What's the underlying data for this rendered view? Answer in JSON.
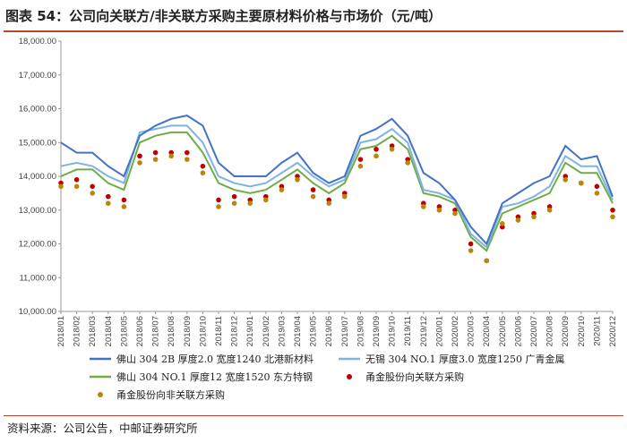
{
  "title": "图表 54：公司向关联方/非关联方采购主要原材料价格与市场价（元/吨）",
  "source": "资料来源：公司公告，中邮证券研究所",
  "chart_data": {
    "type": "line",
    "ylim": [
      10000,
      18000
    ],
    "y_ticks": [
      "10,000.00",
      "11,000.00",
      "12,000.00",
      "13,000.00",
      "14,000.00",
      "15,000.00",
      "16,000.00",
      "17,000.00",
      "18,000.00"
    ],
    "categories": [
      "2018/01",
      "2018/02",
      "2018/03",
      "2018/04",
      "2018/05",
      "2018/06",
      "2018/07",
      "2018/08",
      "2018/09",
      "2018/10",
      "2018/11",
      "2018/12",
      "2019/01",
      "2019/02",
      "2019/03",
      "2019/04",
      "2019/05",
      "2019/06",
      "2019/07",
      "2019/08",
      "2019/09",
      "2019/10",
      "2019/11",
      "2019/12",
      "2020/01",
      "2020/02",
      "2020/03",
      "2020/04",
      "2020/05",
      "2020/06",
      "2020/07",
      "2020/08",
      "2020/09",
      "2020/10",
      "2020/11",
      "2020/12"
    ],
    "grid": false,
    "legend_position": "bottom",
    "series": [
      {
        "name": "佛山 304 2B 厚度2.0 宽度1240 北港新材料",
        "kind": "line",
        "color": "#4472c4",
        "values": [
          15000,
          14700,
          14700,
          14300,
          14000,
          15200,
          15500,
          15700,
          15800,
          15500,
          14400,
          14000,
          14000,
          14000,
          14400,
          14700,
          14100,
          13800,
          14000,
          15200,
          15400,
          15700,
          15200,
          14100,
          13800,
          13300,
          12500,
          12000,
          13200,
          13500,
          13800,
          14000,
          14900,
          14500,
          14600,
          13400
        ]
      },
      {
        "name": "无锡 304 NO.1 厚度3.0 宽度1250 广青金属",
        "kind": "line",
        "color": "#7fb3e0",
        "values": [
          14300,
          14400,
          14300,
          14000,
          13800,
          15300,
          15400,
          15500,
          15500,
          15000,
          14000,
          13800,
          13700,
          13800,
          14100,
          14400,
          14000,
          13700,
          13900,
          15000,
          15100,
          15400,
          15000,
          13600,
          13500,
          13300,
          12300,
          11900,
          13100,
          13200,
          13400,
          13700,
          14600,
          14300,
          14300,
          13300
        ]
      },
      {
        "name": "佛山 304 NO.1 厚度12 宽度1520 东方特钢",
        "kind": "line",
        "color": "#70ad47",
        "values": [
          14000,
          14200,
          14200,
          13800,
          13600,
          15000,
          15200,
          15300,
          15300,
          14700,
          13800,
          13600,
          13500,
          13600,
          13900,
          14200,
          13800,
          13500,
          13800,
          14800,
          14900,
          15200,
          14800,
          13500,
          13400,
          13200,
          12200,
          11800,
          12900,
          13100,
          13300,
          13500,
          14400,
          14100,
          14100,
          13200
        ]
      },
      {
        "name": "甬金股份向关联方采购",
        "kind": "scatter",
        "color": "#c00000",
        "values": [
          13800,
          13900,
          13700,
          13400,
          13300,
          14600,
          14700,
          14700,
          14700,
          14300,
          13300,
          13400,
          13300,
          13400,
          13700,
          14000,
          13600,
          13300,
          13500,
          14500,
          14800,
          14900,
          14500,
          13200,
          13100,
          13000,
          12000,
          11500,
          12500,
          12800,
          12900,
          13100,
          14000,
          13800,
          13700,
          13000
        ]
      },
      {
        "name": "甬金股份向非关联方采购",
        "kind": "scatter",
        "color": "#b8860b",
        "values": [
          13700,
          13700,
          13500,
          13200,
          13100,
          14400,
          14500,
          14600,
          14500,
          14100,
          13100,
          13200,
          13200,
          13300,
          13600,
          13900,
          13400,
          13200,
          13400,
          14300,
          14600,
          14800,
          14400,
          13100,
          13000,
          12900,
          11800,
          11500,
          12600,
          12700,
          12800,
          13000,
          13900,
          13800,
          13500,
          12800
        ]
      }
    ]
  }
}
